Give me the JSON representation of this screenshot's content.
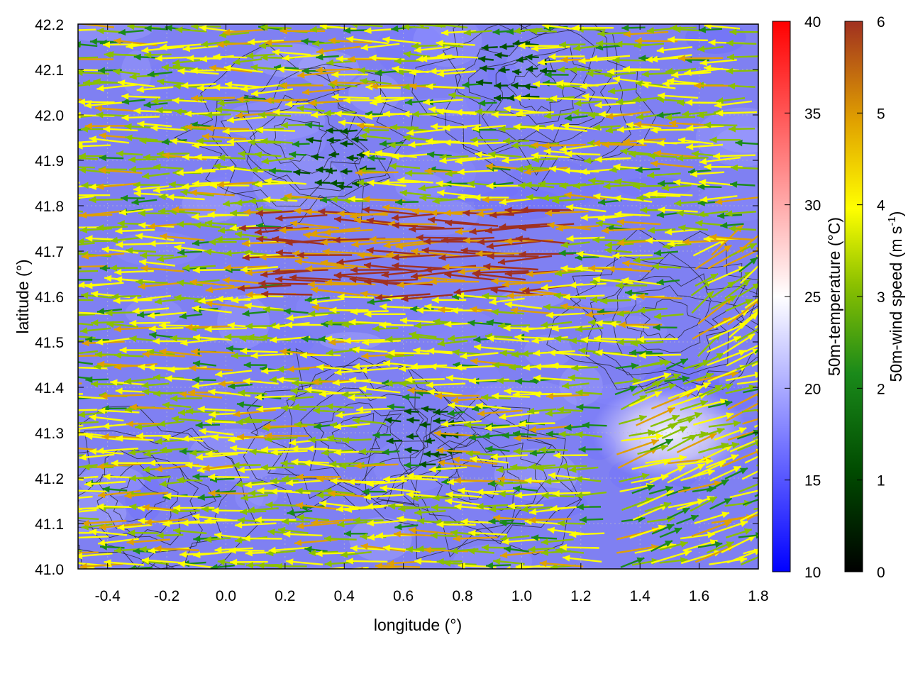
{
  "chart_data": {
    "type": "heatmap",
    "subtype": "wind-vector field over temperature map with terrain contours",
    "xlabel": "longitude (°)",
    "ylabel": "latitude (°)",
    "xlim": [
      -0.5,
      1.8
    ],
    "ylim": [
      41.0,
      42.2
    ],
    "x_ticks": [
      "-0.4",
      "-0.2",
      "0.0",
      "0.2",
      "0.4",
      "0.6",
      "0.8",
      "1.0",
      "1.2",
      "1.4",
      "1.6",
      "1.8"
    ],
    "y_ticks": [
      "41.0",
      "41.1",
      "41.2",
      "41.3",
      "41.4",
      "41.5",
      "41.6",
      "41.7",
      "41.8",
      "41.9",
      "42.0",
      "42.1",
      "42.2"
    ],
    "grid": true,
    "colorbars": [
      {
        "name": "temperature",
        "label": "50m-temperature (°C)",
        "range": [
          10,
          40
        ],
        "ticks": [
          "10",
          "15",
          "20",
          "25",
          "30",
          "35",
          "40"
        ],
        "colors": [
          "#0000ff",
          "#ffffff",
          "#ff0000"
        ]
      },
      {
        "name": "wind_speed",
        "label_main": "50m-wind speed (m s",
        "label_sup": "-1",
        "label_end": ")",
        "range": [
          0,
          6
        ],
        "ticks": [
          "0",
          "1",
          "2",
          "3",
          "4",
          "5",
          "6"
        ],
        "colors": [
          "#000000",
          "#005000",
          "#1a8a1a",
          "#8ac000",
          "#ffff00",
          "#e0a000",
          "#a03020"
        ]
      }
    ],
    "field_summary": {
      "temperature_background_c": 18,
      "warm_patch": {
        "lon": 1.5,
        "lat": 41.3,
        "temp_c": 23
      },
      "dominant_flow": "easterly (arrows point west) over most of the domain; westerly-to-southwesterly flow in the southeast corner",
      "strong_wind_band": {
        "lat_range": [
          41.6,
          41.8
        ],
        "lon_range": [
          0.2,
          1.2
        ],
        "speed_ms": 6
      },
      "calm_zones": [
        {
          "lon": 0.4,
          "lat": 41.9,
          "speed_ms": 0.5
        },
        {
          "lon": 0.7,
          "lat": 41.3,
          "speed_ms": 0.5
        },
        {
          "lon": 1.0,
          "lat": 42.1,
          "speed_ms": 0.5
        }
      ],
      "contour_centers": [
        {
          "lon": 0.45,
          "lat": 41.3
        },
        {
          "lon": 1.05,
          "lat": 42.05
        },
        {
          "lon": 0.85,
          "lat": 41.2
        },
        {
          "lon": -0.3,
          "lat": 41.15
        },
        {
          "lon": 1.5,
          "lat": 41.55
        },
        {
          "lon": 0.25,
          "lat": 41.95
        }
      ]
    }
  }
}
